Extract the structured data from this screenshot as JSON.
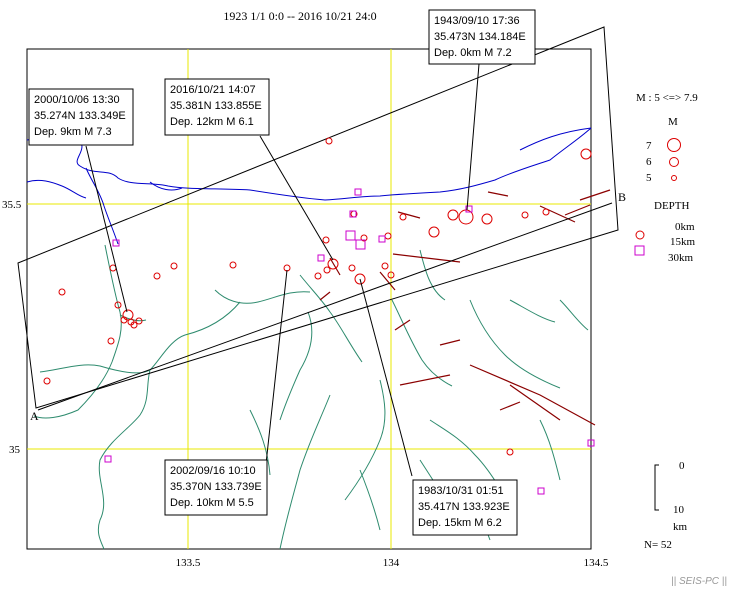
{
  "title": "1923 1/1 0:0 -- 2016 10/21 24:0",
  "axes": {
    "lon_ticks": [
      "133.5",
      "134",
      "134.5"
    ],
    "lat_ticks": [
      "35.5",
      "35"
    ]
  },
  "points": {
    "a": "A",
    "b": "B"
  },
  "legend": {
    "magnitude_range": "M : 5 <=> 7.9",
    "m_header": "M",
    "m_levels": [
      "7",
      "6",
      "5"
    ],
    "depth_header": "DEPTH",
    "depth_levels": [
      "0km",
      "15km",
      "30km"
    ],
    "scale_top": "0",
    "scale_bottom": "10",
    "scale_unit": "km",
    "count": "N= 52"
  },
  "annotations": [
    {
      "line1": "1943/09/10 17:36",
      "line2": "35.473N  134.184E",
      "line3": "Dep. 0km    M 7.2"
    },
    {
      "line1": "2000/10/06 13:30",
      "line2": "35.274N  133.349E",
      "line3": "Dep. 9km    M 7.3"
    },
    {
      "line1": "2016/10/21 14:07",
      "line2": "35.381N  133.855E",
      "line3": "Dep. 12km   M 6.1"
    },
    {
      "line1": "2002/09/16 10:10",
      "line2": "35.370N  133.739E",
      "line3": "Dep. 10km    M 5.5"
    },
    {
      "line1": "1983/10/31 01:51",
      "line2": "35.417N  133.923E",
      "line3": "Dep. 15km    M 6.2"
    }
  ],
  "footer": "|| SEIS-PC ||",
  "colors": {
    "coast": "#0000cc",
    "rivers": "#2e8b6e",
    "faults": "#8b0000",
    "shallow_quake": "#dd0000",
    "deep_quake": "#cc00cc",
    "grid": "#e8e800"
  }
}
